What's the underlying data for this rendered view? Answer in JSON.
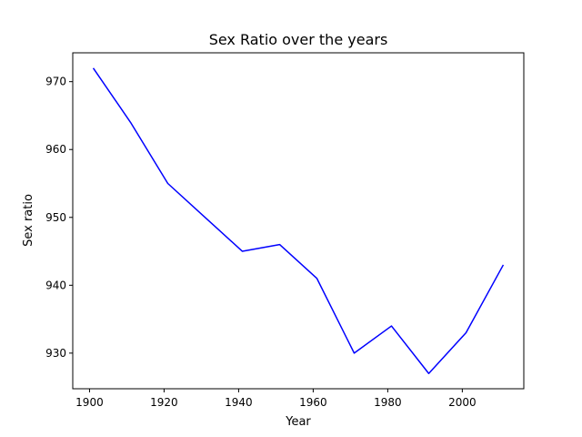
{
  "chart_data": {
    "type": "line",
    "title": "Sex Ratio over the years",
    "xlabel": "Year",
    "ylabel": "Sex ratio",
    "x": [
      1901,
      1911,
      1921,
      1931,
      1941,
      1951,
      1961,
      1971,
      1981,
      1991,
      2001,
      2011
    ],
    "series": [
      {
        "values": [
          972,
          964,
          955,
          950,
          945,
          946,
          941,
          930,
          934,
          927,
          933,
          943
        ]
      }
    ],
    "xlim": [
      1895.5,
      2016.5
    ],
    "ylim": [
      924.75,
      974.25
    ],
    "xticks": [
      1900,
      1920,
      1940,
      1960,
      1980,
      2000
    ],
    "yticks": [
      930,
      940,
      950,
      960,
      970
    ],
    "grid": false,
    "line_color": "#0000ff"
  }
}
